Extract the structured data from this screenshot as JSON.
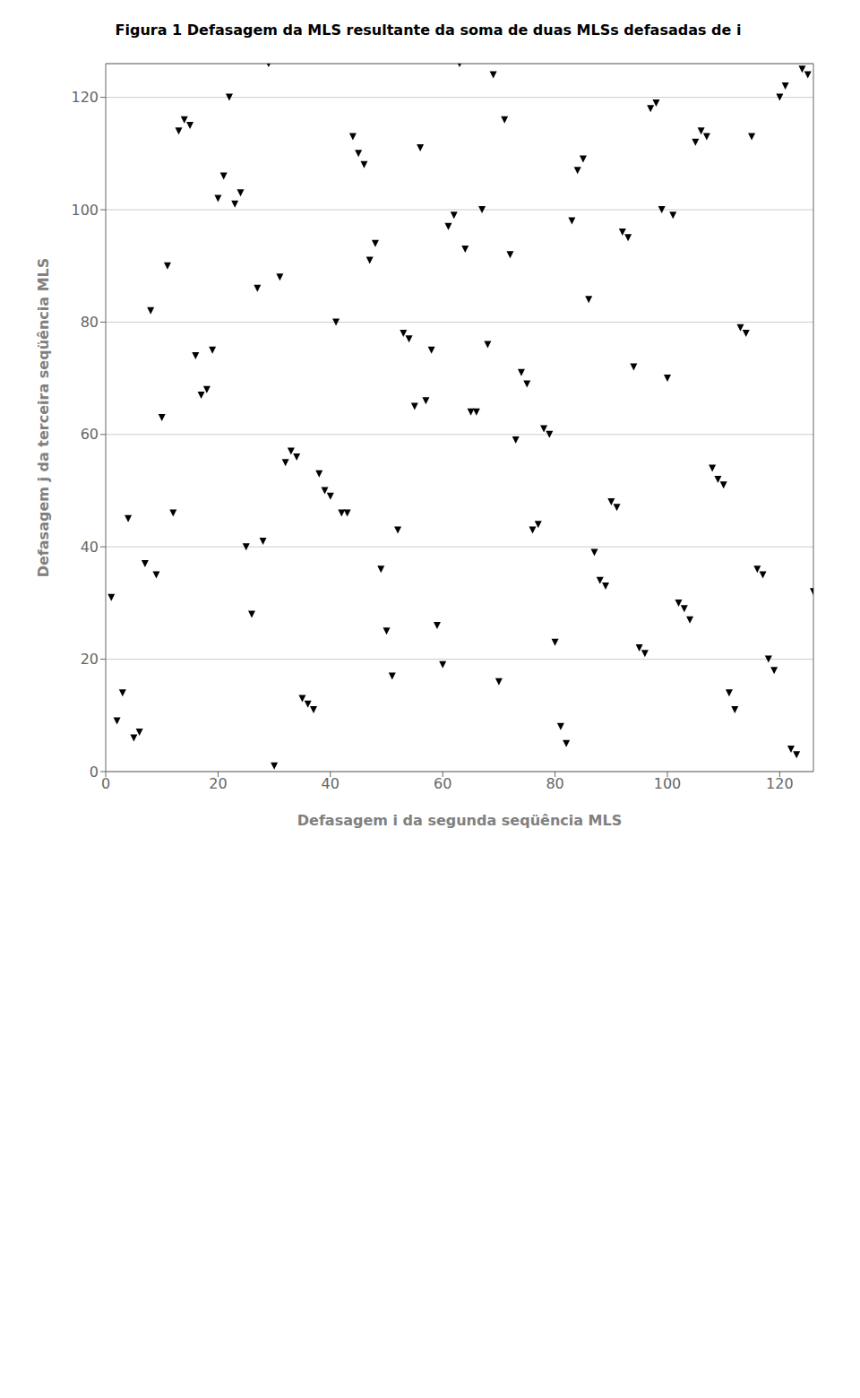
{
  "chart_data": {
    "type": "scatter",
    "title": "Figura 1  Defasagem da MLS resultante da soma de duas MLSs defasadas de i",
    "x_label": "Defasagem i da segunda seqüência MLS",
    "y_label": "Defasagem j da terceira seqüência MLS",
    "x": [
      1,
      2,
      3,
      4,
      5,
      6,
      7,
      8,
      9,
      10,
      11,
      12,
      13,
      14,
      15,
      16,
      17,
      18,
      19,
      20,
      21,
      22,
      23,
      24,
      25,
      26,
      27,
      28,
      29,
      30,
      31,
      32,
      33,
      34,
      35,
      36,
      37,
      38,
      39,
      40,
      41,
      42,
      43,
      44,
      45,
      46,
      47,
      48,
      49,
      50,
      51,
      52,
      53,
      54,
      55,
      56,
      57,
      58,
      59,
      60,
      61,
      62,
      63,
      64,
      65,
      66,
      67,
      68,
      69,
      70,
      71,
      72,
      73,
      74,
      75,
      76,
      77,
      78,
      79,
      80,
      81,
      82,
      83,
      84,
      85,
      86,
      87,
      88,
      89,
      90,
      91,
      92,
      93,
      94,
      95,
      96,
      97,
      98,
      99,
      100,
      101,
      102,
      103,
      104,
      105,
      106,
      107,
      108,
      109,
      110,
      111,
      112,
      113,
      114,
      115,
      116,
      117,
      118,
      119,
      120,
      121,
      122,
      123,
      124,
      125,
      126
    ],
    "values": [
      31,
      9,
      14,
      45,
      6,
      7,
      37,
      82,
      35,
      63,
      90,
      46,
      114,
      116,
      115,
      74,
      67,
      68,
      75,
      102,
      106,
      120,
      101,
      103,
      40,
      28,
      86,
      41,
      126,
      1,
      88,
      55,
      57,
      56,
      13,
      12,
      11,
      53,
      50,
      49,
      80,
      46,
      46,
      113,
      110,
      108,
      91,
      94,
      36,
      25,
      17,
      43,
      78,
      77,
      65,
      111,
      66,
      75,
      26,
      19,
      97,
      99,
      126,
      93,
      64,
      64,
      100,
      76,
      124,
      16,
      116,
      92,
      59,
      71,
      69,
      43,
      44,
      61,
      60,
      23,
      8,
      5,
      98,
      107,
      109,
      84,
      39,
      34,
      33,
      48,
      47,
      96,
      95,
      72,
      22,
      21,
      118,
      119,
      100,
      70,
      99,
      30,
      29,
      27,
      112,
      114,
      113,
      54,
      52,
      51,
      14,
      11,
      79,
      78,
      113,
      36,
      35,
      20,
      18,
      120,
      122,
      4,
      3,
      125,
      124,
      32
    ],
    "color": "#000000",
    "marker": "triangle-down",
    "xlim": [
      0,
      126
    ],
    "ylim": [
      0,
      126
    ],
    "xticks": [
      0,
      20,
      40,
      60,
      80,
      100,
      120
    ],
    "yticks": [
      0,
      20,
      40,
      60,
      80,
      100,
      120
    ],
    "grid": "y"
  }
}
